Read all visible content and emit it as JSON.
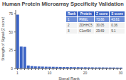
{
  "chart_data": {
    "type": "bar",
    "title": "Human Protein Microarray Specificity Validation",
    "x_label": "Signal Rank",
    "y_label": "Strength of Signal (Z score)",
    "categories": [
      "1",
      null,
      null,
      null,
      null,
      null,
      null,
      null,
      null,
      "10",
      null,
      null,
      null,
      null,
      null,
      null,
      null,
      null,
      null,
      "20",
      null,
      null,
      null,
      null,
      null,
      null,
      null,
      null,
      null,
      "30"
    ],
    "values": [
      73.66,
      30.05,
      29.69,
      4.2,
      3.5,
      3.1,
      2.9,
      2.7,
      2.5,
      2.4,
      2.3,
      2.2,
      2.1,
      2.0,
      1.9,
      1.9,
      1.8,
      1.8,
      1.7,
      1.7,
      1.6,
      1.6,
      1.5,
      1.5,
      1.5,
      1.4,
      1.4,
      1.4,
      1.3,
      1.3
    ],
    "color": "#3b63c4",
    "ylim": [
      0,
      80
    ],
    "yticks": [
      0,
      25,
      50,
      75
    ],
    "table": {
      "columns": [
        "Rank",
        "Protein",
        "Z score",
        "S score"
      ],
      "rows": [
        [
          1,
          "PMEL",
          73.66,
          43.61
        ],
        [
          2,
          "ZDHHC5",
          30.05,
          0.36
        ],
        [
          3,
          "C1orf94",
          29.69,
          9.1
        ]
      ]
    }
  }
}
